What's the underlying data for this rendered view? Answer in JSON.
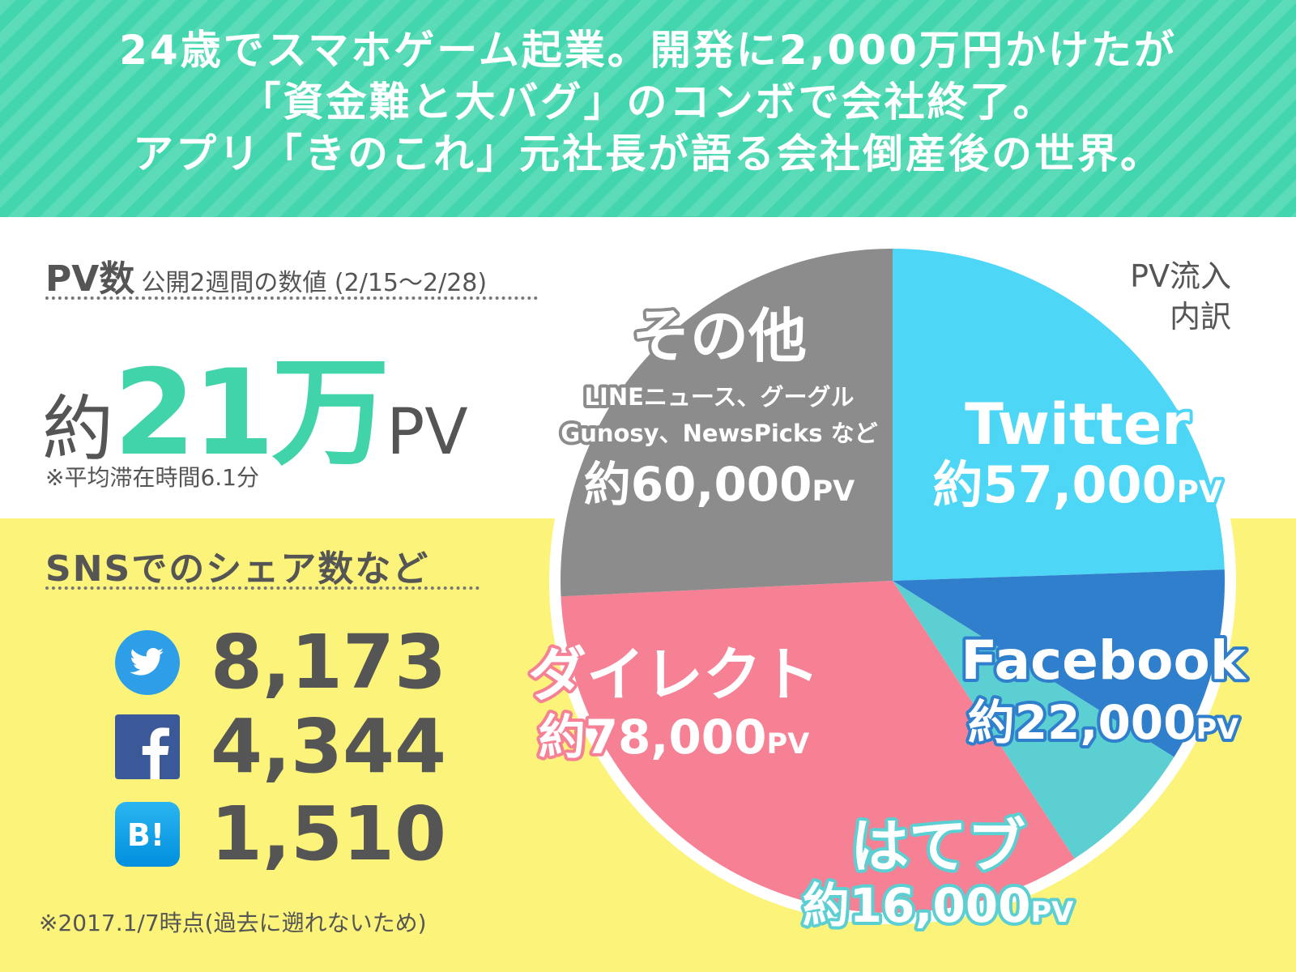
{
  "header": {
    "line1": "24歳でスマホゲーム起業。開発に2,000万円かけたが",
    "line2": "「資金難と大バグ」のコンボで会社終了。",
    "line3": "アプリ「きのこれ」元社長が語る会社倒産後の世界。"
  },
  "pv": {
    "title": "PV数",
    "subtitle": "公開2週間の数値 (2/15〜2/28)",
    "prefix": "約",
    "number": "21万",
    "suffix": "PV",
    "note": "※平均滞在時間6.1分"
  },
  "sns": {
    "title": "SNSでのシェア数など",
    "items": [
      {
        "icon": "twitter-icon",
        "count": "8,173"
      },
      {
        "icon": "facebook-icon",
        "count": "4,344"
      },
      {
        "icon": "hatena-bookmark-icon",
        "count": "1,510"
      }
    ],
    "note": "※2017.1/7時点(過去に遡れないため)"
  },
  "chart_data": {
    "type": "pie",
    "title_line1": "PV流入",
    "title_line2": "内訳",
    "slices": [
      {
        "name": "Twitter",
        "value": 57000,
        "value_label": "約57,000",
        "unit": "PV",
        "color": "#4dd6f6"
      },
      {
        "name": "Facebook",
        "value": 22000,
        "value_label": "約22,000",
        "unit": "PV",
        "color": "#2f7fcc"
      },
      {
        "name": "はてブ",
        "value": 16000,
        "value_label": "約16,000",
        "unit": "PV",
        "color": "#5ccfd2"
      },
      {
        "name": "ダイレクト",
        "value": 78000,
        "value_label": "約78,000",
        "unit": "PV",
        "color": "#f68094"
      },
      {
        "name": "その他",
        "value": 60000,
        "value_label": "約60,000",
        "unit": "PV",
        "color": "#8c8c8c",
        "detail_line1": "LINEニュース、グーグル",
        "detail_line2": "Gunosy、NewsPicks など"
      }
    ]
  }
}
